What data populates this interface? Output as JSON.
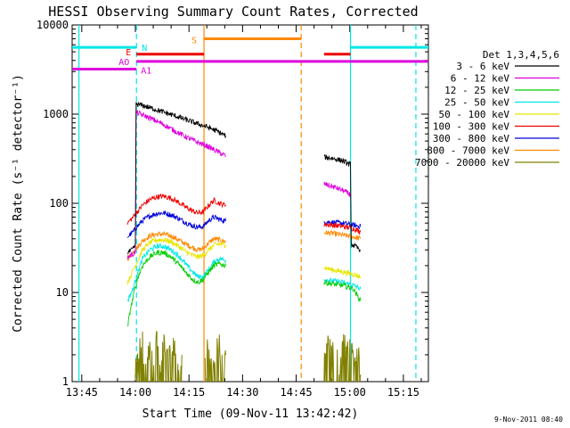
{
  "chart_data": {
    "type": "line",
    "title": "HESSI Observing Summary Count Rates, Corrected",
    "xlabel": "Start Time (09-Nov-11 13:42:42)",
    "ylabel": "Corrected Count Rate (s⁻¹ detector⁻¹)",
    "ylog": true,
    "ylim": [
      1,
      10000
    ],
    "xlim_min": [
      -2.7,
      97
    ],
    "x_tick_labels": [
      "13:45",
      "14:00",
      "14:15",
      "14:30",
      "14:45",
      "15:00",
      "15:15"
    ],
    "x_tick_min": [
      0,
      15,
      30,
      45,
      60,
      75,
      90
    ],
    "y_tick_labels": [
      "1",
      "10",
      "100",
      "1000",
      "10000"
    ],
    "y_tick_values": [
      1,
      10,
      100,
      1000,
      10000
    ],
    "legend_title": "Det 1,3,4,5,6",
    "series": [
      {
        "name": "3 - 6 keV",
        "color": "#000000",
        "seg1": {
          "t": [
            12.8,
            13.6,
            14.4,
            15.0,
            15.2,
            17,
            20,
            23,
            26,
            29,
            32,
            35,
            38,
            40.3
          ],
          "v": [
            28,
            29,
            31,
            34,
            1300,
            1250,
            1150,
            1050,
            960,
            870,
            790,
            720,
            640,
            570
          ]
        },
        "seg2": {
          "t": [
            67.8,
            70,
            73,
            75.2,
            75.4,
            78
          ],
          "v": [
            330,
            320,
            300,
            270,
            35,
            30
          ]
        }
      },
      {
        "name": "6 - 12 keV",
        "color": "#dd00dd",
        "seg1": {
          "t": [
            12.8,
            13.6,
            14.4,
            15.0,
            15.2,
            17,
            20,
            23,
            26,
            29,
            32,
            35,
            38,
            40.3
          ],
          "v": [
            25,
            26,
            27,
            29,
            1050,
            980,
            870,
            760,
            650,
            560,
            490,
            440,
            380,
            340
          ]
        },
        "seg2": {
          "t": [
            67.8,
            70,
            73,
            75.2
          ],
          "v": [
            165,
            155,
            140,
            125
          ]
        }
      },
      {
        "name": "12 - 25 keV",
        "color": "#00cc00",
        "seg1": {
          "t": [
            12.8,
            13.6,
            14.4,
            15.5,
            17,
            19,
            21,
            23,
            25,
            27,
            29,
            31,
            32.5,
            34,
            35.5,
            37,
            38.5,
            40.3
          ],
          "v": [
            4,
            6.5,
            9,
            14,
            20,
            25,
            28,
            28,
            25,
            21,
            17,
            14,
            13,
            14,
            17,
            20,
            21,
            20
          ]
        },
        "seg2": {
          "t": [
            67.8,
            70,
            73,
            76,
            78
          ],
          "v": [
            13,
            12.5,
            12,
            11,
            8
          ]
        }
      },
      {
        "name": "25 - 50 keV",
        "color": "#00e6e6",
        "seg1": {
          "t": [
            12.8,
            13.6,
            14.4,
            15.5,
            17,
            19,
            21,
            23,
            25,
            27,
            29,
            31,
            32.5,
            34,
            35.5,
            37,
            38.5,
            40.3
          ],
          "v": [
            8,
            9.5,
            11,
            16,
            24,
            30,
            33,
            33,
            30,
            26,
            21,
            17,
            15,
            15,
            18,
            22,
            24,
            23
          ]
        },
        "seg2": {
          "t": [
            67.8,
            70,
            73,
            76,
            78
          ],
          "v": [
            14,
            13.5,
            13,
            12,
            11
          ]
        }
      },
      {
        "name": "50 - 100 keV",
        "color": "#e6e600",
        "seg1": {
          "t": [
            12.8,
            13.6,
            14.4,
            15.5,
            17,
            19,
            21,
            23,
            25,
            27,
            29,
            31,
            32.5,
            34,
            35.5,
            37,
            38.5,
            40.3
          ],
          "v": [
            13,
            15,
            18,
            22,
            30,
            36,
            39,
            39,
            37,
            33,
            29,
            26,
            25,
            26,
            30,
            34,
            35,
            34
          ]
        },
        "seg2": {
          "t": [
            67.8,
            70,
            73,
            76,
            78
          ],
          "v": [
            19,
            18,
            17,
            16,
            15
          ]
        }
      },
      {
        "name": "100 - 300 keV",
        "color": "#ee0000",
        "seg1": {
          "t": [
            12.8,
            13.6,
            14.4,
            15.5,
            17,
            19,
            21,
            23,
            25,
            27,
            29,
            31,
            32.5,
            34,
            35.5,
            37,
            38.5,
            40.3
          ],
          "v": [
            60,
            65,
            70,
            80,
            95,
            110,
            118,
            120,
            114,
            103,
            91,
            82,
            78,
            80,
            95,
            108,
            100,
            95
          ]
        },
        "seg2": {
          "t": [
            67.8,
            70,
            73,
            76,
            78
          ],
          "v": [
            58,
            57,
            55,
            52,
            48
          ]
        }
      },
      {
        "name": "300 - 800 keV",
        "color": "#0000dd",
        "seg1": {
          "t": [
            12.8,
            13.6,
            14.4,
            15.5,
            17,
            19,
            21,
            23,
            25,
            27,
            29,
            31,
            32.5,
            34,
            35.5,
            37,
            38.5,
            40.3
          ],
          "v": [
            42,
            45,
            48,
            55,
            64,
            72,
            77,
            78,
            74,
            68,
            61,
            56,
            54,
            55,
            64,
            70,
            66,
            63
          ]
        },
        "seg2": {
          "t": [
            67.8,
            70,
            73,
            76,
            78
          ],
          "v": [
            62,
            61,
            60,
            57,
            55
          ]
        }
      },
      {
        "name": "800 - 7000 keV",
        "color": "#ff8800",
        "seg1": {
          "t": [
            12.8,
            13.6,
            14.4,
            15.5,
            17,
            19,
            21,
            23,
            25,
            27,
            29,
            31,
            32.5,
            34,
            35.5,
            37,
            38.5,
            40.3
          ],
          "v": [
            24,
            26,
            28,
            32,
            38,
            43,
            45,
            45,
            43,
            39,
            35,
            32,
            30,
            31,
            36,
            40,
            39,
            37
          ]
        },
        "seg2": {
          "t": [
            67.8,
            70,
            73,
            76,
            78
          ],
          "v": [
            47,
            46,
            44,
            42,
            40
          ]
        }
      },
      {
        "name": "7000 - 20000 keV",
        "color": "#808000",
        "seg1": {
          "t": [
            15,
            16,
            17,
            18,
            19,
            20,
            21,
            22,
            23,
            24,
            25,
            26,
            27,
            28
          ],
          "v": [
            1.2,
            2.2,
            3,
            1,
            3,
            2,
            3.5,
            1,
            3,
            2.5,
            1.5,
            3,
            1,
            2
          ]
        },
        "seg2": {
          "t": [
            34.5,
            35.5,
            36.5,
            37.5,
            38.5,
            39.5,
            40.3
          ],
          "v": [
            2,
            3,
            1,
            3,
            2.5,
            1.2,
            2
          ]
        },
        "seg3": {
          "t": [
            67.8,
            69,
            70,
            71,
            72,
            73,
            74,
            75,
            76,
            77,
            78
          ],
          "v": [
            1.5,
            3,
            2,
            3,
            1,
            3,
            2.2,
            3,
            1.5,
            2.5,
            1.2
          ]
        }
      }
    ],
    "flag_bars": [
      {
        "label": "N",
        "color": "#00e6e6",
        "value": 5600,
        "segments": [
          [
            -2.7,
            15.3
          ],
          [
            75.2,
            97
          ]
        ]
      },
      {
        "label": "E",
        "color": "#ee0000",
        "value": 4700,
        "segments": [
          [
            15.3,
            34.2
          ],
          [
            67.8,
            75.2
          ]
        ]
      },
      {
        "label": "AO",
        "color": "#dd00dd",
        "value": 3900,
        "segments": [
          [
            15.3,
            97
          ]
        ]
      },
      {
        "label": "A1",
        "color": "#dd00dd",
        "value": 3200,
        "segments": [
          [
            -2.7,
            15.3
          ]
        ]
      },
      {
        "label": "S",
        "color": "#ff8800",
        "value": 7000,
        "segments": [
          [
            34.2,
            61.4
          ]
        ]
      }
    ],
    "vlines": [
      {
        "t": -0.8,
        "color": "#00e6e6",
        "style": "solid"
      },
      {
        "t": 15.3,
        "color": "#00e6e6",
        "style": "dashed"
      },
      {
        "t": 34.2,
        "color": "#ff8800",
        "style": "solid"
      },
      {
        "t": 61.4,
        "color": "#ff8800",
        "style": "dashed"
      },
      {
        "t": 75.2,
        "color": "#00e6e6",
        "style": "solid"
      },
      {
        "t": 93.5,
        "color": "#00e6e6",
        "style": "dashed"
      }
    ]
  },
  "footer": {
    "timestamp": "9-Nov-2011 08:40"
  }
}
